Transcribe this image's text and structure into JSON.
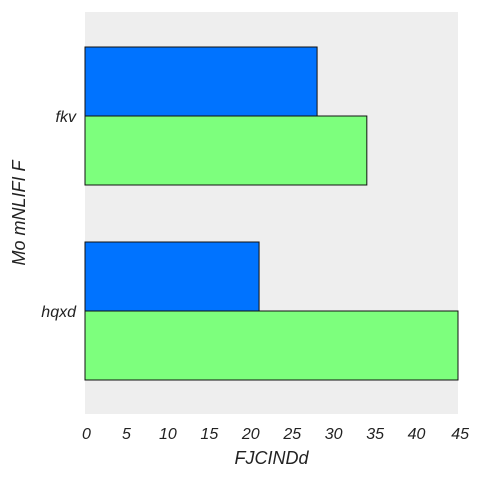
{
  "chart_data": {
    "type": "bar",
    "orientation": "horizontal",
    "xlabel": "FJCINDd",
    "ylabel": "Mo mNLIFI F",
    "xlim": [
      0,
      45
    ],
    "x_ticks": [
      "0",
      "5",
      "10",
      "15",
      "20",
      "25",
      "30",
      "35",
      "40",
      "45"
    ],
    "categories": [
      "fkv",
      "hqxd"
    ],
    "series": [
      {
        "color": "#0073ff",
        "values": [
          28,
          21
        ]
      },
      {
        "color": "#7dff7d",
        "values": [
          34,
          45
        ]
      }
    ],
    "grid": false,
    "background": "#eeeeee"
  }
}
